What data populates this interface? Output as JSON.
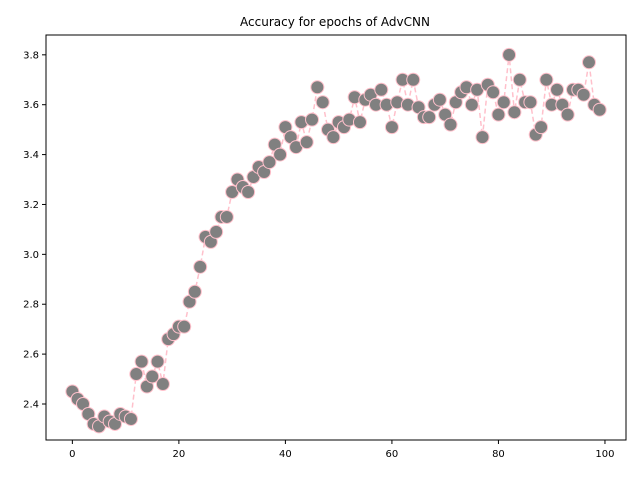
{
  "chart_data": {
    "type": "line",
    "title": "Accuracy for epochs of AdvCNN",
    "xlabel": "",
    "ylabel": "",
    "xlim": [
      -4.95,
      103.95
    ],
    "ylim": [
      2.2556,
      3.8795
    ],
    "xticks": [
      0,
      20,
      40,
      60,
      80,
      100
    ],
    "yticks": [
      2.4,
      2.6,
      2.8,
      3.0,
      3.2,
      3.4,
      3.6,
      3.8
    ],
    "xtick_labels": [
      "0",
      "20",
      "40",
      "60",
      "80",
      "100"
    ],
    "ytick_labels": [
      "2.4",
      "2.6",
      "2.8",
      "3.0",
      "3.2",
      "3.4",
      "3.6",
      "3.8"
    ],
    "grid": false,
    "legend": "none",
    "line_style": "dashed",
    "line_color": "#ffc0cb",
    "marker_color": "#808080",
    "marker_edge_color": "#ffc0cb",
    "series": [
      {
        "x": [
          0,
          1,
          2,
          3,
          4,
          5,
          6,
          7,
          8,
          9,
          10,
          11,
          12,
          13,
          14,
          15,
          16,
          17,
          18,
          19,
          20,
          21,
          22,
          23,
          24,
          25,
          26,
          27,
          28,
          29,
          30,
          31,
          32,
          33,
          34,
          35,
          36,
          37,
          38,
          39,
          40,
          41,
          42,
          43,
          44,
          45,
          46,
          47,
          48,
          49,
          50,
          51,
          52,
          53,
          54,
          55,
          56,
          57,
          58,
          59,
          60,
          61,
          62,
          63,
          64,
          65,
          66,
          67,
          68,
          69,
          70,
          71,
          72,
          73,
          74,
          75,
          76,
          77,
          78,
          79,
          80,
          81,
          82,
          83,
          84,
          85,
          86,
          87,
          88,
          89,
          90,
          91,
          92,
          93,
          94,
          95,
          96,
          97,
          98,
          99
        ],
        "values": [
          2.45,
          2.42,
          2.4,
          2.36,
          2.32,
          2.31,
          2.35,
          2.33,
          2.32,
          2.36,
          2.35,
          2.34,
          2.52,
          2.57,
          2.47,
          2.51,
          2.57,
          2.48,
          2.66,
          2.68,
          2.71,
          2.71,
          2.81,
          2.85,
          2.95,
          3.07,
          3.05,
          3.09,
          3.15,
          3.15,
          3.25,
          3.3,
          3.27,
          3.25,
          3.31,
          3.35,
          3.33,
          3.37,
          3.44,
          3.4,
          3.51,
          3.47,
          3.43,
          3.53,
          3.45,
          3.54,
          3.67,
          3.61,
          3.5,
          3.47,
          3.53,
          3.51,
          3.54,
          3.63,
          3.53,
          3.62,
          3.64,
          3.6,
          3.66,
          3.6,
          3.51,
          3.61,
          3.7,
          3.6,
          3.7,
          3.59,
          3.55,
          3.55,
          3.6,
          3.62,
          3.56,
          3.52,
          3.61,
          3.65,
          3.67,
          3.6,
          3.66,
          3.47,
          3.68,
          3.65,
          3.56,
          3.61,
          3.8,
          3.57,
          3.7,
          3.61,
          3.61,
          3.48,
          3.51,
          3.7,
          3.6,
          3.66,
          3.6,
          3.56,
          3.66,
          3.66,
          3.64,
          3.77,
          3.6,
          3.58
        ]
      }
    ]
  }
}
